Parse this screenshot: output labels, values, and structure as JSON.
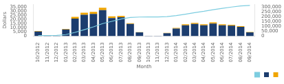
{
  "chart_data": {
    "type": "bar",
    "stacked": true,
    "xlabel": "Month",
    "ylabel": "Dollars",
    "categories": [
      "10/2012",
      "11/2012",
      "12/2012",
      "01/2013",
      "02/2013",
      "03/2013",
      "04/2013",
      "05/2013",
      "06/2013",
      "07/2013",
      "08/2013",
      "09/2013",
      "10/2013",
      "11/2013",
      "12/2013",
      "01/2014",
      "02/2014",
      "03/2014",
      "04/2014",
      "05/2014",
      "06/2014",
      "07/2014",
      "08/2014",
      "09/2014"
    ],
    "series": [
      {
        "color": "#1c3d6e",
        "values": [
          5500,
          700,
          400,
          8000,
          21000,
          25500,
          26500,
          31000,
          21500,
          22500,
          14500,
          4500,
          400,
          400,
          3500,
          9000,
          13000,
          14500,
          13000,
          15000,
          13000,
          12500,
          11000,
          4500
        ]
      },
      {
        "color": "#f0a500",
        "values": [
          700,
          150,
          100,
          600,
          2000,
          2500,
          2500,
          2800,
          2000,
          1800,
          800,
          200,
          50,
          50,
          400,
          800,
          1200,
          1400,
          1200,
          1400,
          1200,
          1100,
          1000,
          400
        ]
      },
      {
        "type": "line",
        "axis": "y2",
        "color": "#7dcde0",
        "values": [
          6200,
          7100,
          7700,
          16300,
          39300,
          67300,
          96300,
          130100,
          153600,
          177900,
          193200,
          197900,
          198450,
          198900,
          202800,
          212600,
          226800,
          242700,
          256900,
          273300,
          287500,
          301100,
          313100,
          318000
        ]
      }
    ],
    "ylim": [
      0,
      38000
    ],
    "yticks": [
      0,
      {
        "value": 5000,
        "label": "5,000"
      },
      {
        "value": 10000,
        "label": "10,000"
      },
      {
        "value": 15000,
        "label": "15,000"
      },
      {
        "value": 20000,
        "label": "20,000"
      },
      {
        "value": 25000,
        "label": "25,000"
      },
      {
        "value": 30000,
        "label": "30,000"
      },
      {
        "value": 35000,
        "label": "35,000"
      }
    ],
    "y2lim": [
      0,
      330000
    ],
    "y2ticks": [
      0,
      {
        "value": 50000,
        "label": "50,000"
      },
      {
        "value": 100000,
        "label": "100,000"
      },
      {
        "value": 150000,
        "label": "150,000"
      },
      {
        "value": 200000,
        "label": "200,000"
      },
      {
        "value": 250000,
        "label": "250,000"
      },
      {
        "value": 300000,
        "label": "300,000"
      }
    ],
    "grid": false,
    "legend": "lower right"
  }
}
